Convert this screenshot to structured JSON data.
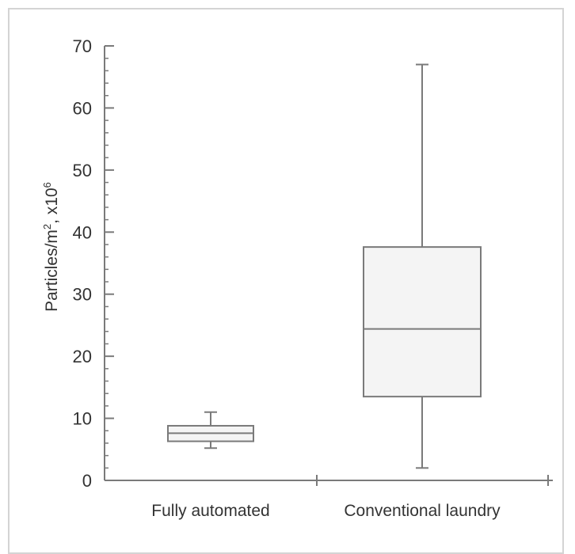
{
  "chart_data": {
    "type": "box",
    "categories": [
      "Fully automated",
      "Conventional laundry"
    ],
    "series": [
      {
        "category": "Fully automated",
        "whisker_low": 5.2,
        "q1": 6.3,
        "median": 7.6,
        "q3": 8.8,
        "whisker_high": 11.0
      },
      {
        "category": "Conventional laundry",
        "whisker_low": 2.0,
        "q1": 13.5,
        "median": 24.4,
        "q3": 37.6,
        "whisker_high": 67.0
      }
    ],
    "ylabel_main": "Particles/m",
    "ylabel_sup1": "2",
    "ylabel_mid": ", x10",
    "ylabel_sup2": "6",
    "ylim": [
      0,
      70
    ],
    "yticks": [
      "0",
      "10",
      "20",
      "30",
      "40",
      "50",
      "60",
      "70"
    ],
    "grid": false,
    "colors": {
      "axis": "#7a7a7a",
      "box_stroke": "#7a7a7a",
      "box_fill": "#f4f4f4",
      "border": "#d4d4d4"
    }
  }
}
